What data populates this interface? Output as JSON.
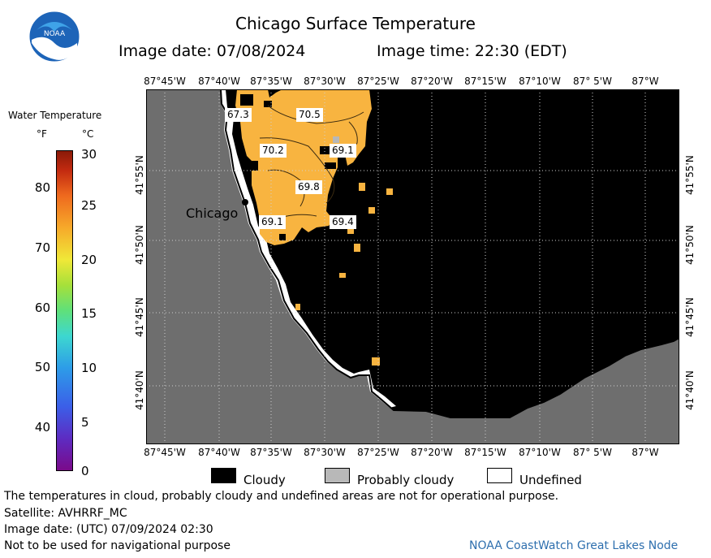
{
  "header": {
    "title": "Chicago Surface Temperature",
    "image_date": "Image date: 07/08/2024",
    "image_time": "Image time: 22:30 (EDT)",
    "logo_text": "NOAA"
  },
  "colorbar": {
    "title": "Water Temperature",
    "unit_f": "°F",
    "unit_c": "°C",
    "f_ticks": [
      "80",
      "70",
      "60",
      "50",
      "40"
    ],
    "c_ticks": [
      "30",
      "25",
      "20",
      "15",
      "10",
      "5",
      "0"
    ]
  },
  "map": {
    "lon_labels": [
      "87°45'W",
      "87°40'W",
      "87°35'W",
      "87°30'W",
      "87°25'W",
      "87°20'W",
      "87°15'W",
      "87°10'W",
      "87° 5'W",
      "87°W"
    ],
    "lat_labels": [
      "41°55'N",
      "41°50'N",
      "41°45'N",
      "41°40'N"
    ],
    "city_label": "Chicago",
    "temperature_labels": [
      "67.3",
      "70.5",
      "70.2",
      "69.1",
      "69.8",
      "69.1",
      "69.4"
    ],
    "land_color": "#6e6e6e",
    "cloud_color": "#000000",
    "water_color": "#f8b440"
  },
  "legend": {
    "cloudy": "Cloudy",
    "probably_cloudy": "Probably cloudy",
    "undefined": "Undefined"
  },
  "footer": {
    "line1": "The temperatures in cloud, probably cloudy and undefined areas are not for operational purpose.",
    "line2": "Satellite: AVHRRF_MC",
    "line3": "Image date: (UTC) 07/09/2024  02:30",
    "line4": "Not to be used for navigational purpose",
    "credit": "NOAA CoastWatch Great Lakes Node"
  }
}
